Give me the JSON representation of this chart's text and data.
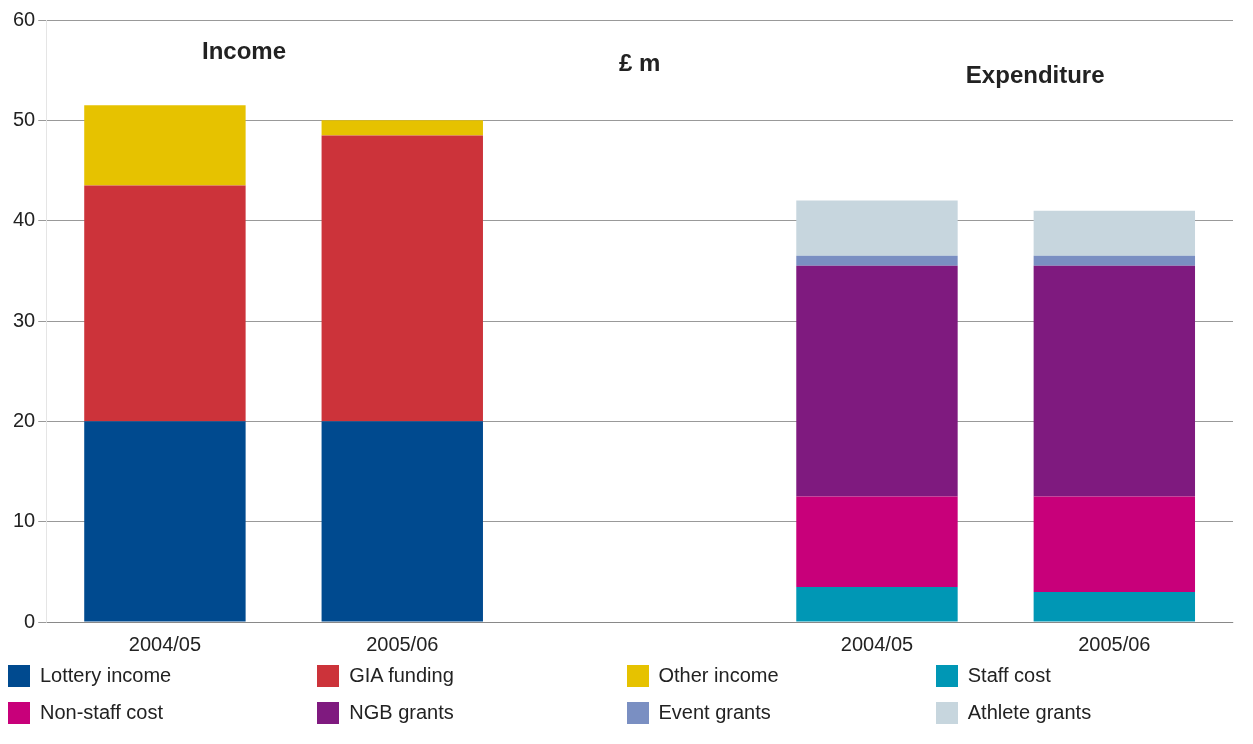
{
  "chart_data": {
    "type": "bar",
    "stacked": true,
    "categories": [
      "2004/05",
      "2005/06",
      null,
      "2004/05",
      "2005/06"
    ],
    "series": [
      {
        "name": "Lottery income",
        "color": "#004a8f",
        "values": [
          20,
          20,
          null,
          null,
          null
        ]
      },
      {
        "name": "GIA funding",
        "color": "#cc333a",
        "values": [
          23.5,
          28.5,
          null,
          null,
          null
        ]
      },
      {
        "name": "Other income",
        "color": "#e6c200",
        "values": [
          8,
          1.5,
          null,
          null,
          null
        ]
      },
      {
        "name": "Staff cost",
        "color": "#0097b5",
        "values": [
          null,
          null,
          null,
          3.5,
          3
        ]
      },
      {
        "name": "Non-staff cost",
        "color": "#c8007a",
        "values": [
          null,
          null,
          null,
          9,
          9.5
        ]
      },
      {
        "name": "NGB grants",
        "color": "#7f1a7f",
        "values": [
          null,
          null,
          null,
          23,
          23
        ]
      },
      {
        "name": "Event grants",
        "color": "#7a8fc2",
        "values": [
          null,
          null,
          null,
          1,
          1
        ]
      },
      {
        "name": "Athlete grants",
        "color": "#c7d6de",
        "values": [
          null,
          null,
          null,
          5.5,
          4.5
        ]
      }
    ],
    "ylim": [
      0,
      60
    ],
    "yticks": [
      0,
      10,
      20,
      30,
      40,
      50,
      60
    ],
    "grid": "y",
    "legend": "bottom",
    "annotations": [
      "Income",
      "£ m",
      "Expenditure"
    ]
  }
}
